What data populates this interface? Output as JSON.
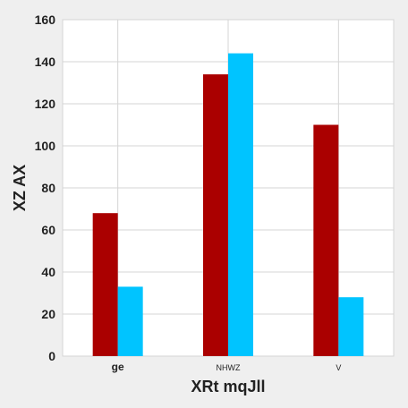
{
  "chart_data": {
    "type": "bar",
    "title": "",
    "xlabel": "XRt mqJll",
    "ylabel": "XZ AX",
    "categories": [
      "ge",
      "NHWZ",
      "V"
    ],
    "series": [
      {
        "values": [
          68,
          134,
          110
        ]
      },
      {
        "values": [
          33,
          144,
          28
        ]
      }
    ],
    "ylim": [
      0,
      160
    ],
    "yticks": [
      0,
      20,
      40,
      60,
      80,
      100,
      120,
      140,
      160
    ],
    "grid": true,
    "colors": [
      "#aa0000",
      "#00c4ff"
    ],
    "background": "#efefef",
    "plot_background": "#ffffff",
    "grid_color": "#d4d4d4"
  }
}
